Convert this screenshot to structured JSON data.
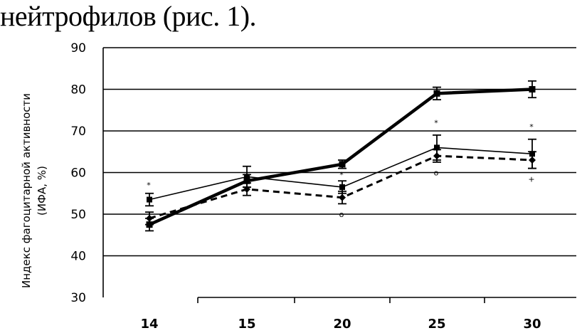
{
  "heading": "нейтрофилов (рис. 1).",
  "chart_data": {
    "type": "line",
    "categories": [
      "14",
      "15",
      "20",
      "25",
      "30"
    ],
    "ylabel": [
      "Индекс фагоцитарной активности",
      "(ИФА, %)"
    ],
    "yticks": [
      30,
      40,
      50,
      60,
      70,
      80,
      90
    ],
    "ylim": [
      30,
      90
    ],
    "grid": true,
    "series": [
      {
        "values": [
          47.5,
          58,
          62,
          79,
          80
        ],
        "errors": [
          1.5,
          1.5,
          1,
          1.5,
          2
        ],
        "style": "thick-solid",
        "color": "#000000"
      },
      {
        "values": [
          53.5,
          59,
          56.5,
          66,
          64.5
        ],
        "errors": [
          1.5,
          2.5,
          1.5,
          3,
          3.5
        ],
        "style": "thin-solid",
        "color": "#000000"
      },
      {
        "values": [
          49,
          56,
          54,
          64,
          63
        ],
        "errors": [
          1.5,
          1.5,
          1.5,
          1.5,
          2
        ],
        "style": "dashed",
        "color": "#000000"
      }
    ],
    "annotations": [
      {
        "x": "14",
        "y": 57,
        "text": "*"
      },
      {
        "x": "20",
        "y": 50,
        "text": "о"
      },
      {
        "x": "20",
        "y": 59.5,
        "text": "*"
      },
      {
        "x": "25",
        "y": 72,
        "text": "*"
      },
      {
        "x": "25",
        "y": 60,
        "text": "о"
      },
      {
        "x": "30",
        "y": 71,
        "text": "*"
      },
      {
        "x": "30",
        "y": 58.5,
        "text": "+"
      }
    ]
  }
}
